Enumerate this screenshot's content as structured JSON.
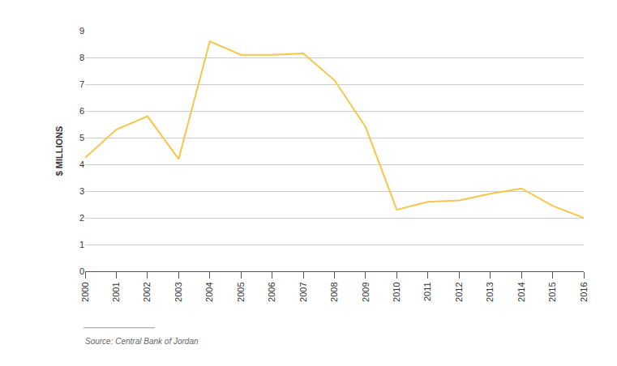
{
  "chart_data": {
    "type": "line",
    "y_label": "$ MILLIONS",
    "source": "Source: Central Bank of Jordan",
    "categories": [
      "2000",
      "2001",
      "2002",
      "2003",
      "2004",
      "2005",
      "2006",
      "2007",
      "2008",
      "2009",
      "2010",
      "2011",
      "2012",
      "2013",
      "2014",
      "2015",
      "2016"
    ],
    "values": [
      4.25,
      5.3,
      5.8,
      4.2,
      8.6,
      8.1,
      8.1,
      8.15,
      7.15,
      5.4,
      2.3,
      2.6,
      2.65,
      2.9,
      3.1,
      2.45,
      2.0
    ],
    "color": "#f7c548",
    "ylim": [
      0,
      9
    ],
    "yticks": [
      0,
      1,
      2,
      3,
      4,
      5,
      6,
      7,
      8,
      9
    ],
    "grid": true
  }
}
